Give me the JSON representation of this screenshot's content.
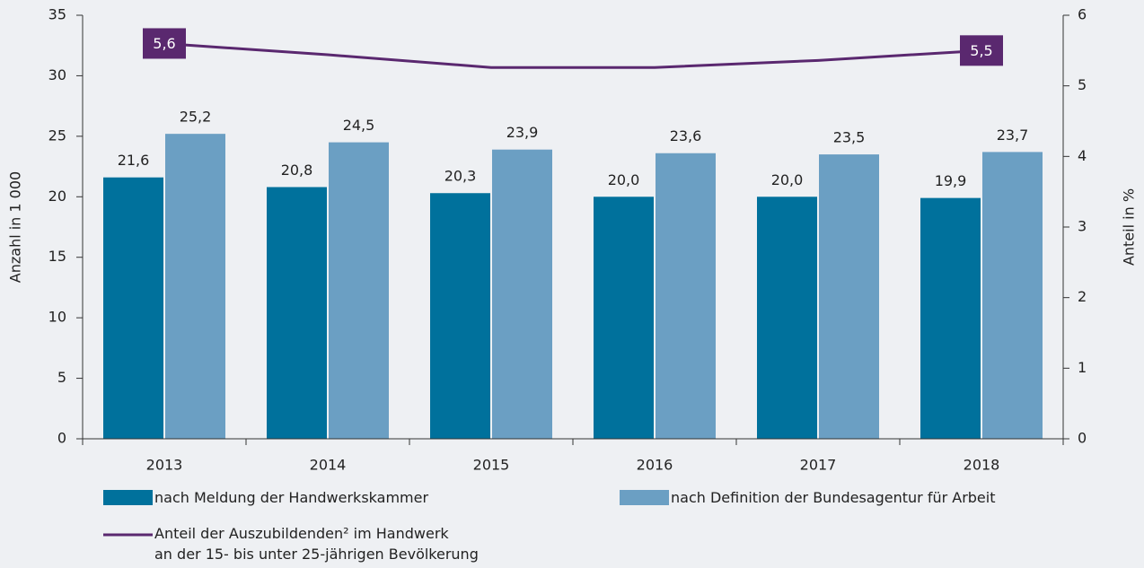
{
  "chart_data": {
    "type": "bar",
    "categories": [
      "2013",
      "2014",
      "2015",
      "2016",
      "2017",
      "2018"
    ],
    "ylabel": "Anzahl in 1 000",
    "y2label": "Anteil in %",
    "ylim": [
      0,
      35
    ],
    "yticks": [
      0,
      5,
      10,
      15,
      20,
      25,
      30,
      35
    ],
    "y2lim": [
      0,
      6
    ],
    "y2ticks": [
      0,
      1,
      2,
      3,
      4,
      5,
      6
    ],
    "series": [
      {
        "name": "nach Meldung der Handwerkskammer",
        "color": "#00719c",
        "values": [
          21.6,
          20.8,
          20.3,
          20.0,
          20.0,
          19.9
        ],
        "value_labels": [
          "21,6",
          "20,8",
          "20,3",
          "20,0",
          "20,0",
          "19,9"
        ]
      },
      {
        "name": "nach Definition der Bundesagentur für Arbeit",
        "color": "#6b9fc3",
        "values": [
          25.2,
          24.5,
          23.9,
          23.6,
          23.5,
          23.7
        ],
        "value_labels": [
          "25,2",
          "24,5",
          "23,9",
          "23,6",
          "23,5",
          "23,7"
        ]
      },
      {
        "name": "Anteil der Auszubildenden² im Handwerk\nan der 15- bis unter 25-jährigen Bevölkerung",
        "type": "line",
        "axis": "y2",
        "color": "#5a286f",
        "values": [
          5.6,
          5.44,
          5.26,
          5.26,
          5.36,
          5.5
        ],
        "value_labels": [
          "5,6",
          null,
          null,
          null,
          null,
          "5,5"
        ]
      }
    ]
  }
}
